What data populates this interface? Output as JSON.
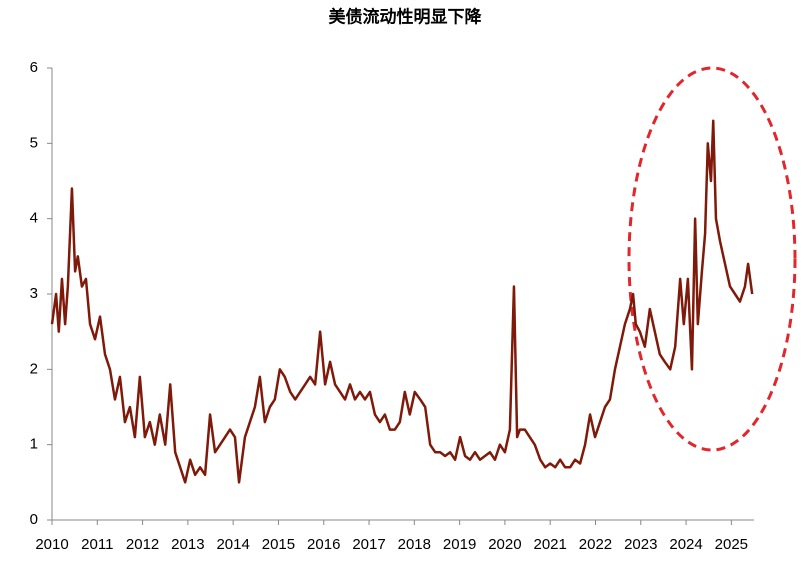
{
  "chart_data": {
    "type": "line",
    "title": "美债流动性明显下降",
    "xlim": [
      2010,
      2025.5
    ],
    "xticks": [
      2010,
      2011,
      2012,
      2013,
      2014,
      2015,
      2016,
      2017,
      2018,
      2019,
      2020,
      2021,
      2022,
      2023,
      2024,
      2025
    ],
    "ylim": [
      0,
      6
    ],
    "yticks": [
      0,
      1,
      2,
      3,
      4,
      5,
      6
    ],
    "grid": false,
    "series": [
      {
        "color": "#7f1a0a",
        "x": [
          2010.0,
          2010.09,
          2010.15,
          2010.22,
          2010.29,
          2010.35,
          2010.44,
          2010.51,
          2010.57,
          2010.66,
          2010.75,
          2010.84,
          2010.95,
          2011.06,
          2011.17,
          2011.28,
          2011.39,
          2011.5,
          2011.61,
          2011.72,
          2011.83,
          2011.94,
          2012.05,
          2012.16,
          2012.27,
          2012.38,
          2012.5,
          2012.61,
          2012.72,
          2012.83,
          2012.94,
          2013.05,
          2013.16,
          2013.27,
          2013.38,
          2013.49,
          2013.6,
          2013.71,
          2013.82,
          2013.93,
          2014.04,
          2014.13,
          2014.26,
          2014.37,
          2014.48,
          2014.59,
          2014.7,
          2014.81,
          2014.92,
          2015.03,
          2015.14,
          2015.26,
          2015.37,
          2015.48,
          2015.59,
          2015.7,
          2015.81,
          2015.92,
          2016.03,
          2016.14,
          2016.25,
          2016.36,
          2016.47,
          2016.58,
          2016.69,
          2016.8,
          2016.91,
          2017.02,
          2017.13,
          2017.24,
          2017.35,
          2017.46,
          2017.57,
          2017.68,
          2017.79,
          2017.9,
          2018.01,
          2018.13,
          2018.24,
          2018.35,
          2018.46,
          2018.57,
          2018.68,
          2018.79,
          2018.9,
          2019.01,
          2019.12,
          2019.23,
          2019.34,
          2019.45,
          2019.56,
          2019.67,
          2019.78,
          2019.89,
          2020.0,
          2020.11,
          2020.2,
          2020.27,
          2020.33,
          2020.44,
          2020.55,
          2020.66,
          2020.78,
          2020.89,
          2021.0,
          2021.11,
          2021.22,
          2021.33,
          2021.44,
          2021.55,
          2021.66,
          2021.77,
          2021.88,
          2021.99,
          2022.1,
          2022.21,
          2022.32,
          2022.43,
          2022.54,
          2022.65,
          2022.76,
          2022.83,
          2022.89,
          2022.98,
          2023.09,
          2023.2,
          2023.31,
          2023.42,
          2023.53,
          2023.65,
          2023.76,
          2023.87,
          2023.95,
          2024.04,
          2024.13,
          2024.2,
          2024.26,
          2024.35,
          2024.42,
          2024.48,
          2024.55,
          2024.6,
          2024.66,
          2024.75,
          2024.86,
          2024.97,
          2025.08,
          2025.19,
          2025.3,
          2025.37,
          2025.46
        ],
        "values": [
          2.6,
          3.0,
          2.5,
          3.2,
          2.6,
          3.1,
          4.4,
          3.3,
          3.5,
          3.1,
          3.2,
          2.6,
          2.4,
          2.7,
          2.2,
          2.0,
          1.6,
          1.9,
          1.3,
          1.5,
          1.1,
          1.9,
          1.1,
          1.3,
          1.0,
          1.4,
          1.0,
          1.8,
          0.9,
          0.7,
          0.5,
          0.8,
          0.6,
          0.7,
          0.6,
          1.4,
          0.9,
          1.0,
          1.1,
          1.2,
          1.1,
          0.5,
          1.1,
          1.3,
          1.5,
          1.9,
          1.3,
          1.5,
          1.6,
          2.0,
          1.9,
          1.7,
          1.6,
          1.7,
          1.8,
          1.9,
          1.8,
          2.5,
          1.8,
          2.1,
          1.8,
          1.7,
          1.6,
          1.8,
          1.6,
          1.7,
          1.6,
          1.7,
          1.4,
          1.3,
          1.4,
          1.2,
          1.2,
          1.3,
          1.7,
          1.4,
          1.7,
          1.6,
          1.5,
          1.0,
          0.9,
          0.9,
          0.85,
          0.9,
          0.8,
          1.1,
          0.85,
          0.8,
          0.9,
          0.8,
          0.85,
          0.9,
          0.8,
          1.0,
          0.9,
          1.2,
          3.1,
          1.1,
          1.2,
          1.2,
          1.1,
          1.0,
          0.8,
          0.7,
          0.75,
          0.7,
          0.8,
          0.7,
          0.7,
          0.8,
          0.75,
          1.0,
          1.4,
          1.1,
          1.3,
          1.5,
          1.6,
          2.0,
          2.3,
          2.6,
          2.8,
          3.0,
          2.6,
          2.5,
          2.3,
          2.8,
          2.5,
          2.2,
          2.1,
          2.0,
          2.3,
          3.2,
          2.6,
          3.2,
          2.0,
          4.0,
          2.6,
          3.3,
          3.8,
          5.0,
          4.5,
          5.3,
          4.0,
          3.7,
          3.4,
          3.1,
          3.0,
          2.9,
          3.1,
          3.4,
          3.0
        ]
      }
    ]
  }
}
